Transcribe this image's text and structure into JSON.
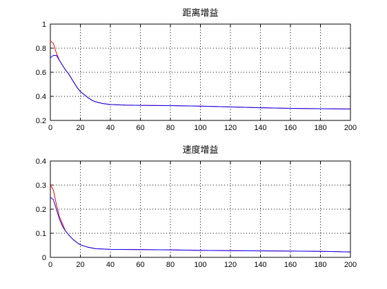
{
  "chart_data": [
    {
      "type": "line",
      "title": "距离增益",
      "xlabel": "",
      "ylabel": "",
      "xlim": [
        0,
        200
      ],
      "ylim": [
        0.2,
        1
      ],
      "xticks": [
        "0",
        "20",
        "40",
        "60",
        "80",
        "100",
        "120",
        "140",
        "160",
        "180",
        "200"
      ],
      "yticks": [
        "0.2",
        "0.4",
        "0.6",
        "0.8",
        "1"
      ],
      "grid": true,
      "series": [
        {
          "color": "#ff0000",
          "x": [
            0,
            2,
            4,
            6,
            8,
            10,
            12,
            15,
            18,
            20,
            22,
            25,
            28,
            30,
            35,
            40,
            50,
            60,
            80,
            100,
            120,
            140,
            160,
            180,
            200
          ],
          "y": [
            0.86,
            0.84,
            0.76,
            0.7,
            0.66,
            0.62,
            0.59,
            0.53,
            0.47,
            0.44,
            0.42,
            0.39,
            0.365,
            0.355,
            0.34,
            0.332,
            0.327,
            0.325,
            0.323,
            0.318,
            0.312,
            0.305,
            0.3,
            0.297,
            0.295
          ]
        },
        {
          "color": "#0000ff",
          "x": [
            0,
            2,
            4,
            6,
            8,
            10,
            12,
            15,
            18,
            20,
            22,
            25,
            28,
            30,
            35,
            40,
            50,
            60,
            80,
            100,
            120,
            140,
            160,
            180,
            200
          ],
          "y": [
            0.72,
            0.74,
            0.74,
            0.7,
            0.66,
            0.62,
            0.59,
            0.53,
            0.47,
            0.44,
            0.42,
            0.39,
            0.365,
            0.355,
            0.34,
            0.332,
            0.327,
            0.325,
            0.323,
            0.318,
            0.312,
            0.305,
            0.3,
            0.297,
            0.295
          ]
        }
      ]
    },
    {
      "type": "line",
      "title": "速度增益",
      "xlabel": "",
      "ylabel": "",
      "xlim": [
        0,
        200
      ],
      "ylim": [
        0,
        0.4
      ],
      "xticks": [
        "0",
        "20",
        "40",
        "60",
        "80",
        "100",
        "120",
        "140",
        "160",
        "180",
        "200"
      ],
      "yticks": [
        "0",
        "0.1",
        "0.2",
        "0.3",
        "0.4"
      ],
      "grid": true,
      "series": [
        {
          "color": "#ff0000",
          "x": [
            0,
            2,
            4,
            6,
            8,
            10,
            12,
            15,
            18,
            20,
            25,
            30,
            40,
            60,
            80,
            100,
            120,
            140,
            160,
            180,
            190,
            200
          ],
          "y": [
            0.3,
            0.28,
            0.22,
            0.17,
            0.14,
            0.11,
            0.095,
            0.075,
            0.06,
            0.052,
            0.042,
            0.036,
            0.033,
            0.032,
            0.031,
            0.029,
            0.028,
            0.027,
            0.026,
            0.025,
            0.024,
            0.022
          ]
        },
        {
          "color": "#0000ff",
          "x": [
            0,
            2,
            4,
            6,
            8,
            10,
            12,
            15,
            18,
            20,
            25,
            30,
            40,
            60,
            80,
            100,
            120,
            140,
            160,
            180,
            190,
            200
          ],
          "y": [
            0.25,
            0.24,
            0.2,
            0.16,
            0.13,
            0.11,
            0.095,
            0.075,
            0.06,
            0.052,
            0.042,
            0.036,
            0.033,
            0.032,
            0.031,
            0.029,
            0.028,
            0.027,
            0.026,
            0.025,
            0.024,
            0.022
          ]
        }
      ]
    }
  ]
}
